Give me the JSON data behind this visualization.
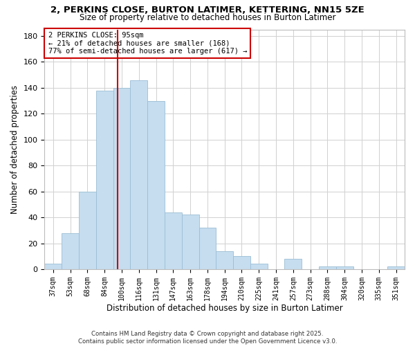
{
  "title": "2, PERKINS CLOSE, BURTON LATIMER, KETTERING, NN15 5ZE",
  "subtitle": "Size of property relative to detached houses in Burton Latimer",
  "xlabel": "Distribution of detached houses by size in Burton Latimer",
  "ylabel": "Number of detached properties",
  "bar_labels": [
    "37sqm",
    "53sqm",
    "68sqm",
    "84sqm",
    "100sqm",
    "116sqm",
    "131sqm",
    "147sqm",
    "163sqm",
    "178sqm",
    "194sqm",
    "210sqm",
    "225sqm",
    "241sqm",
    "257sqm",
    "273sqm",
    "288sqm",
    "304sqm",
    "320sqm",
    "335sqm",
    "351sqm"
  ],
  "bar_values": [
    4,
    28,
    60,
    138,
    140,
    146,
    130,
    44,
    42,
    32,
    14,
    10,
    4,
    0,
    8,
    0,
    2,
    2,
    0,
    0,
    2
  ],
  "bar_color": "#c5ddef",
  "bar_edgecolor": "#9bbdd4",
  "annotation_label": "2 PERKINS CLOSE: 95sqm",
  "annotation_line1": "← 21% of detached houses are smaller (168)",
  "annotation_line2": "77% of semi-detached houses are larger (617) →",
  "vline_color": "#cc0000",
  "annotation_box_edgecolor": "#cc0000",
  "ylim": [
    0,
    185
  ],
  "yticks": [
    0,
    20,
    40,
    60,
    80,
    100,
    120,
    140,
    160,
    180
  ],
  "footer_line1": "Contains HM Land Registry data © Crown copyright and database right 2025.",
  "footer_line2": "Contains public sector information licensed under the Open Government Licence v3.0.",
  "background_color": "#ffffff",
  "grid_color": "#d0d0d0",
  "vline_x_index": 3.75
}
